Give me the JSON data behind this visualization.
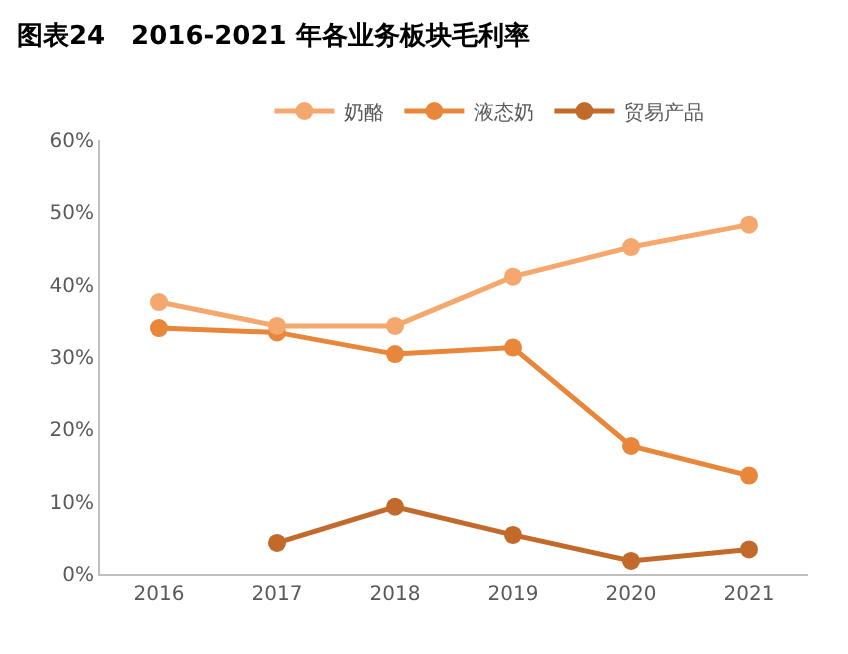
{
  "chart_data": {
    "type": "line",
    "title": "图表24　2016-2021 年各业务板块毛利率",
    "categories": [
      "2016",
      "2017",
      "2018",
      "2019",
      "2020",
      "2021"
    ],
    "series": [
      {
        "name": "奶酪",
        "color": "#f5a86e",
        "values": [
          37.6,
          34.3,
          34.3,
          41.1,
          45.2,
          48.3
        ]
      },
      {
        "name": "液态奶",
        "color": "#e8873a",
        "values": [
          34.0,
          33.4,
          30.4,
          31.3,
          17.7,
          13.6
        ]
      },
      {
        "name": "贸易产品",
        "color": "#c26a2c",
        "values": [
          null,
          4.3,
          9.3,
          5.4,
          1.8,
          3.4
        ]
      }
    ],
    "ylim": [
      0,
      60
    ],
    "yticks": [
      {
        "value": 0,
        "label": "0%"
      },
      {
        "value": 10,
        "label": "10%"
      },
      {
        "value": 20,
        "label": "20%"
      },
      {
        "value": 30,
        "label": "30%"
      },
      {
        "value": 40,
        "label": "40%"
      },
      {
        "value": 50,
        "label": "50%"
      },
      {
        "value": 60,
        "label": "60%"
      }
    ],
    "grid": false,
    "legend": "top",
    "marker": "circle",
    "line_style": "solid"
  }
}
